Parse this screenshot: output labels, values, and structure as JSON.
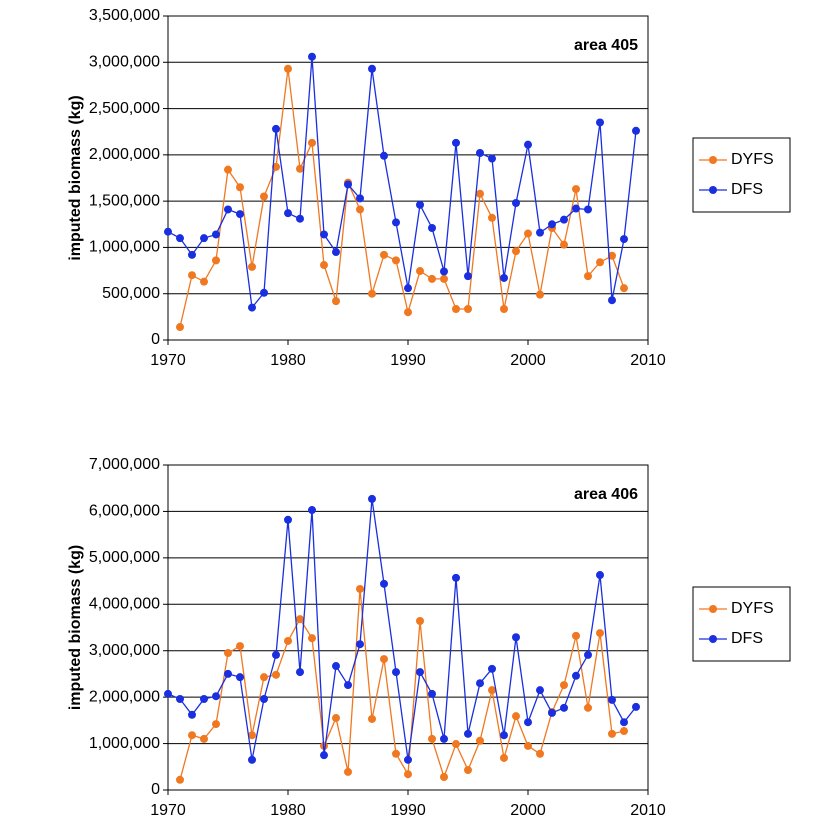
{
  "chart_data": [
    {
      "type": "line",
      "y_label": "imputed biomass (kg)",
      "annotation": "area 405",
      "x": [
        1970,
        1971,
        1972,
        1973,
        1974,
        1975,
        1976,
        1977,
        1978,
        1979,
        1980,
        1981,
        1982,
        1983,
        1984,
        1985,
        1986,
        1987,
        1988,
        1989,
        1990,
        1991,
        1992,
        1993,
        1994,
        1995,
        1996,
        1997,
        1998,
        1999,
        2000,
        2001,
        2002,
        2003,
        2004,
        2005,
        2006,
        2007,
        2008,
        2009
      ],
      "series": [
        {
          "name": "DYFS",
          "color": "#f07820",
          "values": [
            null,
            140000,
            700000,
            630000,
            860000,
            1840000,
            1650000,
            790000,
            1550000,
            1870000,
            2930000,
            1850000,
            2130000,
            810000,
            420000,
            1700000,
            1410000,
            500000,
            920000,
            860000,
            300000,
            745000,
            660000,
            660000,
            335000,
            335000,
            1580000,
            1320000,
            335000,
            960000,
            1150000,
            490000,
            1210000,
            1030000,
            1630000,
            690000,
            840000,
            910000,
            560000,
            null
          ]
        },
        {
          "name": "DFS",
          "color": "#1a2fe0",
          "values": [
            1170000,
            1100000,
            920000,
            1100000,
            1140000,
            1410000,
            1360000,
            350000,
            510000,
            2280000,
            1370000,
            1310000,
            3060000,
            1140000,
            950000,
            1680000,
            1530000,
            2930000,
            1990000,
            1270000,
            560000,
            1460000,
            1210000,
            740000,
            2130000,
            690000,
            2020000,
            1960000,
            670000,
            1480000,
            2110000,
            1160000,
            1250000,
            1300000,
            1420000,
            1410000,
            2350000,
            430000,
            1090000,
            2260000
          ]
        }
      ],
      "xlim": [
        1970,
        2010
      ],
      "xticks": [
        1970,
        1980,
        1990,
        2000,
        2010
      ],
      "ylim": [
        0,
        3500000
      ],
      "yticks": [
        0,
        {
          "value": 500000,
          "label": "500,000"
        },
        {
          "value": 1000000,
          "label": "1,000,000"
        },
        {
          "value": 1500000,
          "label": "1,500,000"
        },
        {
          "value": 2000000,
          "label": "2,000,000"
        },
        {
          "value": 2500000,
          "label": "2,500,000"
        },
        {
          "value": 3000000,
          "label": "3,000,000"
        },
        {
          "value": 3500000,
          "label": "3,500,000"
        }
      ],
      "grid": true,
      "legend": "right"
    },
    {
      "type": "line",
      "y_label": "imputed biomass (kg)",
      "annotation": "area 406",
      "x": [
        1970,
        1971,
        1972,
        1973,
        1974,
        1975,
        1976,
        1977,
        1978,
        1979,
        1980,
        1981,
        1982,
        1983,
        1984,
        1985,
        1986,
        1987,
        1988,
        1989,
        1990,
        1991,
        1992,
        1993,
        1994,
        1995,
        1996,
        1997,
        1998,
        1999,
        2000,
        2001,
        2002,
        2003,
        2004,
        2005,
        2006,
        2007,
        2008,
        2009
      ],
      "series": [
        {
          "name": "DYFS",
          "color": "#f07820",
          "values": [
            null,
            220000,
            1180000,
            1100000,
            1420000,
            2950000,
            3100000,
            1180000,
            2430000,
            2480000,
            3210000,
            3680000,
            3270000,
            950000,
            1550000,
            390000,
            4330000,
            1530000,
            2820000,
            780000,
            340000,
            3640000,
            1100000,
            280000,
            990000,
            430000,
            1060000,
            2150000,
            690000,
            1590000,
            950000,
            780000,
            1680000,
            2260000,
            3320000,
            1770000,
            3380000,
            1210000,
            1270000,
            null
          ]
        },
        {
          "name": "DFS",
          "color": "#1a2fe0",
          "values": [
            2070000,
            1960000,
            1620000,
            1960000,
            2020000,
            2500000,
            2430000,
            650000,
            1960000,
            2910000,
            5820000,
            2540000,
            6030000,
            750000,
            2670000,
            2260000,
            3140000,
            6270000,
            4440000,
            2540000,
            650000,
            2540000,
            2070000,
            1100000,
            4570000,
            1210000,
            2300000,
            2610000,
            1180000,
            3290000,
            1460000,
            2150000,
            1660000,
            1770000,
            2460000,
            2910000,
            4630000,
            1940000,
            1460000,
            1790000
          ]
        }
      ],
      "xlim": [
        1970,
        2010
      ],
      "xticks": [
        1970,
        1980,
        1990,
        2000,
        2010
      ],
      "ylim": [
        0,
        7000000
      ],
      "yticks": [
        0,
        {
          "value": 1000000,
          "label": "1,000,000"
        },
        {
          "value": 2000000,
          "label": "2,000,000"
        },
        {
          "value": 3000000,
          "label": "3,000,000"
        },
        {
          "value": 4000000,
          "label": "4,000,000"
        },
        {
          "value": 5000000,
          "label": "5,000,000"
        },
        {
          "value": 6000000,
          "label": "6,000,000"
        },
        {
          "value": 7000000,
          "label": "7,000,000"
        }
      ],
      "grid": true,
      "legend": "right"
    }
  ]
}
